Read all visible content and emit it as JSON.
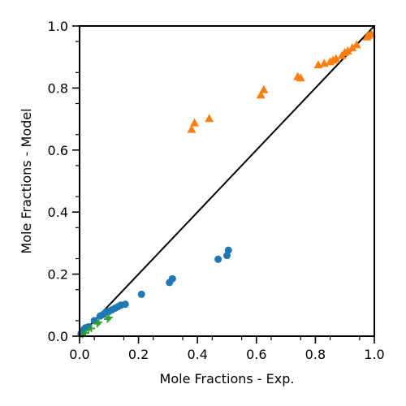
{
  "chart_data": {
    "type": "scatter",
    "title": "",
    "xlabel": "Mole Fractions - Exp.",
    "ylabel": "Mole Fractions - Model",
    "xlim": [
      0,
      1
    ],
    "ylim": [
      0,
      1
    ],
    "grid": false,
    "xticks": [
      0.0,
      0.2,
      0.4,
      0.6,
      0.8,
      1.0
    ],
    "yticks": [
      0.0,
      0.2,
      0.4,
      0.6,
      0.8,
      1.0
    ],
    "xtick_labels": [
      "0.0",
      "0.2",
      "0.4",
      "0.6",
      "0.8",
      "1.0"
    ],
    "ytick_labels": [
      "0.0",
      "0.2",
      "0.4",
      "0.6",
      "0.8",
      "1.0"
    ],
    "reference_line": {
      "from": [
        0,
        0
      ],
      "to": [
        1,
        1
      ],
      "color": "#000000"
    },
    "series": [
      {
        "marker": "circle",
        "color": "#1f77b4",
        "points": [
          [
            0.005,
            0.008
          ],
          [
            0.01,
            0.015
          ],
          [
            0.015,
            0.022
          ],
          [
            0.02,
            0.027
          ],
          [
            0.03,
            0.03
          ],
          [
            0.05,
            0.05
          ],
          [
            0.07,
            0.065
          ],
          [
            0.08,
            0.07
          ],
          [
            0.09,
            0.078
          ],
          [
            0.1,
            0.08
          ],
          [
            0.11,
            0.085
          ],
          [
            0.12,
            0.09
          ],
          [
            0.13,
            0.095
          ],
          [
            0.14,
            0.1
          ],
          [
            0.155,
            0.103
          ],
          [
            0.21,
            0.135
          ],
          [
            0.305,
            0.173
          ],
          [
            0.315,
            0.185
          ],
          [
            0.47,
            0.248
          ],
          [
            0.5,
            0.26
          ],
          [
            0.505,
            0.277
          ]
        ]
      },
      {
        "marker": "triangle",
        "color": "#ff7f0e",
        "points": [
          [
            0.38,
            0.667
          ],
          [
            0.39,
            0.688
          ],
          [
            0.44,
            0.702
          ],
          [
            0.615,
            0.778
          ],
          [
            0.625,
            0.795
          ],
          [
            0.74,
            0.837
          ],
          [
            0.75,
            0.833
          ],
          [
            0.81,
            0.875
          ],
          [
            0.83,
            0.88
          ],
          [
            0.85,
            0.885
          ],
          [
            0.86,
            0.89
          ],
          [
            0.87,
            0.895
          ],
          [
            0.89,
            0.905
          ],
          [
            0.9,
            0.915
          ],
          [
            0.91,
            0.92
          ],
          [
            0.925,
            0.93
          ],
          [
            0.94,
            0.94
          ],
          [
            0.975,
            0.965
          ],
          [
            0.98,
            0.97
          ],
          [
            0.99,
            0.975
          ]
        ]
      },
      {
        "marker": "plus",
        "color": "#2ca02c",
        "points": [
          [
            0.01,
            0.005
          ],
          [
            0.02,
            0.01
          ],
          [
            0.03,
            0.02
          ],
          [
            0.04,
            0.025
          ],
          [
            0.06,
            0.04
          ],
          [
            0.065,
            0.045
          ],
          [
            0.095,
            0.055
          ],
          [
            0.1,
            0.06
          ]
        ]
      }
    ]
  }
}
